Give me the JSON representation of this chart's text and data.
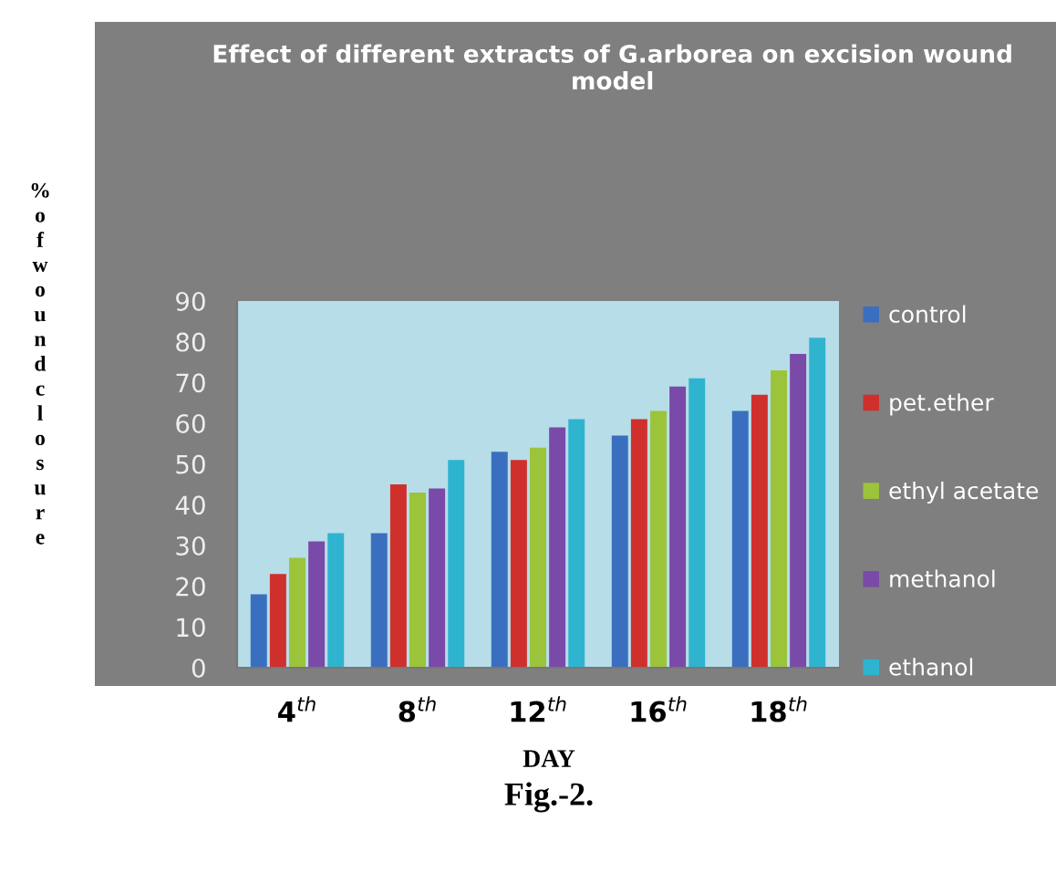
{
  "chart_data": {
    "type": "bar",
    "title": "Effect of different extracts of G.arborea on excision wound model",
    "xlabel": "DAY",
    "ylabel": "% of wound closure",
    "annotations": [
      "Fig.-2."
    ],
    "categories": [
      "4$^{th}$",
      "8$^{th}$",
      "12$^{th}$",
      "16$^{th}$",
      "18$^{th}$"
    ],
    "series": [
      {
        "name": "control",
        "color": "#3a6fc0",
        "values": [
          18,
          33,
          53,
          57,
          63
        ]
      },
      {
        "name": "pet.ether",
        "color": "#d0302c",
        "values": [
          23,
          45,
          51,
          61,
          67
        ]
      },
      {
        "name": "ethyl acetate",
        "color": "#9cc43a",
        "values": [
          27,
          43,
          54,
          63,
          73
        ]
      },
      {
        "name": "methanol",
        "color": "#7a4aa8",
        "values": [
          31,
          44,
          59,
          69,
          77
        ]
      },
      {
        "name": "ethanol",
        "color": "#2fb4d0",
        "values": [
          33,
          51,
          61,
          71,
          81
        ]
      }
    ],
    "ylim": [
      0,
      90
    ],
    "yticks": [
      0,
      10,
      20,
      30,
      40,
      50,
      60,
      70,
      80,
      90
    ],
    "grid": false,
    "legend": "right"
  }
}
